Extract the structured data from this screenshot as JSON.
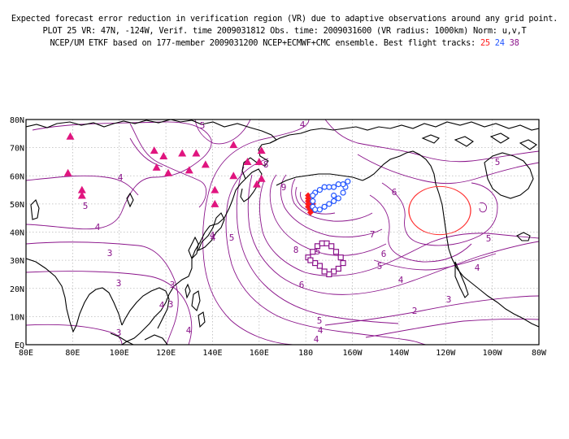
{
  "header": {
    "line1": "Expected forecast error reduction in verification region (VR) due to adaptive observations around any grid point.",
    "line2": "PLOT 25 VR: 47N, -124W, Verif. time 2009031812 Obs. time: 2009031600 (VR radius: 1000km) Norm: u,v,T",
    "line3_prefix": "NCEP/UM ETKF based on 177-member 2009031200 NCEP+ECMWF+CMC ensemble. Best flight tracks:",
    "track_a": "25",
    "track_b": "24",
    "track_c": "38"
  },
  "colors": {
    "contour": "#8a138a",
    "coast": "#000000",
    "grid": "#b8b8b8",
    "track_a": "#ff1a1a",
    "track_b": "#2255ff",
    "track_c": "#8a138a",
    "obs_triangle": "#e0157f",
    "vr_circle": "#ff3030"
  },
  "axes": {
    "x_ticks": [
      "80E",
      "80E",
      "100E",
      "120E",
      "140E",
      "160E",
      "180",
      "160W",
      "140W",
      "120W",
      "100W",
      "80W"
    ],
    "y_ticks": [
      "EQ",
      "10N",
      "20N",
      "30N",
      "40N",
      "50N",
      "60N",
      "70N",
      "80N"
    ]
  },
  "contour_labels": [
    "5",
    "4",
    "5",
    "4",
    "4",
    "3",
    "3",
    "3",
    "3",
    "4",
    "9",
    "8",
    "8",
    "7",
    "6",
    "6",
    "5",
    "5",
    "4",
    "5",
    "5",
    "4",
    "3",
    "2",
    "5",
    "4",
    "4",
    "3",
    "4",
    "5",
    "4",
    "4",
    "6"
  ],
  "flight_tracks": [
    {
      "name": "25",
      "symbol": "filled-diamond",
      "color": "#ff1a1a",
      "points": [
        [
          181,
          53
        ],
        [
          181,
          52
        ],
        [
          181,
          51
        ],
        [
          181,
          50
        ],
        [
          181,
          49
        ],
        [
          182,
          48
        ],
        [
          182,
          47
        ],
        [
          183,
          48
        ],
        [
          183,
          50
        ]
      ]
    },
    {
      "name": "24",
      "symbol": "open-circle",
      "color": "#2255ff",
      "points": [
        [
          183,
          49
        ],
        [
          184,
          48
        ],
        [
          186,
          48
        ],
        [
          188,
          49
        ],
        [
          190,
          50
        ],
        [
          192,
          51
        ],
        [
          194,
          52
        ],
        [
          196,
          54
        ],
        [
          197,
          56
        ],
        [
          196,
          57
        ],
        [
          194,
          57
        ],
        [
          192,
          56
        ],
        [
          190,
          56
        ],
        [
          188,
          56
        ],
        [
          186,
          55
        ],
        [
          184,
          54
        ],
        [
          183,
          53
        ],
        [
          183,
          51
        ],
        [
          192,
          53
        ],
        [
          198,
          58
        ]
      ]
    },
    {
      "name": "38",
      "symbol": "open-square",
      "color": "#8a138a",
      "points": [
        [
          181,
          31
        ],
        [
          183,
          33
        ],
        [
          185,
          35
        ],
        [
          187,
          36
        ],
        [
          189,
          36
        ],
        [
          191,
          35
        ],
        [
          193,
          33
        ],
        [
          195,
          31
        ],
        [
          196,
          29
        ],
        [
          194,
          27
        ],
        [
          192,
          26
        ],
        [
          190,
          25
        ],
        [
          188,
          26
        ],
        [
          186,
          28
        ],
        [
          184,
          29
        ],
        [
          182,
          30
        ]
      ]
    }
  ],
  "obs_sites": [
    [
      79,
      74
    ],
    [
      115,
      69
    ],
    [
      119,
      67
    ],
    [
      127,
      68
    ],
    [
      133,
      68
    ],
    [
      149,
      71
    ],
    [
      161,
      69
    ],
    [
      78,
      61
    ],
    [
      84,
      55
    ],
    [
      84,
      53
    ],
    [
      116,
      63
    ],
    [
      121,
      61
    ],
    [
      130,
      62
    ],
    [
      137,
      64
    ],
    [
      149,
      60
    ],
    [
      155,
      65
    ],
    [
      160,
      65
    ],
    [
      159,
      57
    ],
    [
      161,
      59
    ],
    [
      141,
      55
    ],
    [
      141,
      50
    ]
  ],
  "verification_region": {
    "lat": 47,
    "lon": -124,
    "radius_km": 1000
  }
}
